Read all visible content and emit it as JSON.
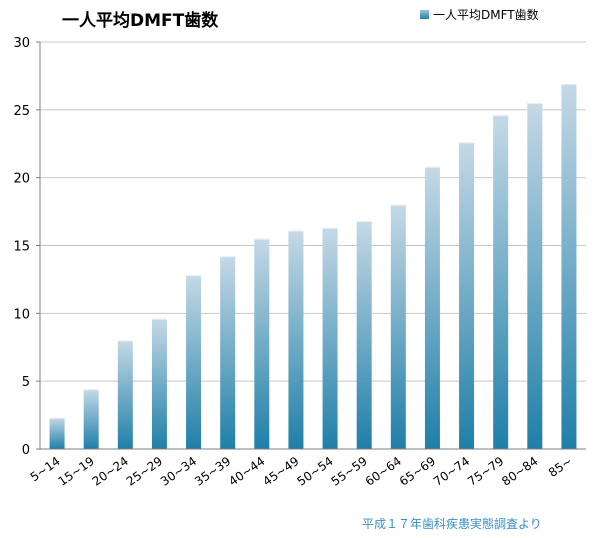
{
  "chart_data": {
    "type": "bar",
    "title": "一人平均DMFT歯数",
    "source_note": "平成１７年歯科疾患実態調査より",
    "legend": {
      "label": "一人平均DMFT歯数",
      "position": "top-right"
    },
    "categories": [
      "5~14",
      "15~19",
      "20~24",
      "25~29",
      "30~34",
      "35~39",
      "40~44",
      "45~49",
      "50~54",
      "55~59",
      "60~64",
      "65~69",
      "70~74",
      "75~79",
      "80~84",
      "85~"
    ],
    "series": [
      {
        "name": "一人平均DMFT歯数",
        "values": [
          2.3,
          4.4,
          8.0,
          9.6,
          12.8,
          14.2,
          15.5,
          16.1,
          16.3,
          16.8,
          18.0,
          20.8,
          22.6,
          24.6,
          25.5,
          26.9
        ]
      }
    ],
    "y_ticks": [
      "0",
      "5",
      "10",
      "15",
      "20",
      "25",
      "30"
    ],
    "ylim": [
      0,
      30
    ],
    "grid": true,
    "colors": {
      "bar_top": "#c5d9e6",
      "bar_bottom": "#1f7fa8",
      "grid": "#c8c8c8",
      "axis": "#7f7f7f"
    }
  }
}
